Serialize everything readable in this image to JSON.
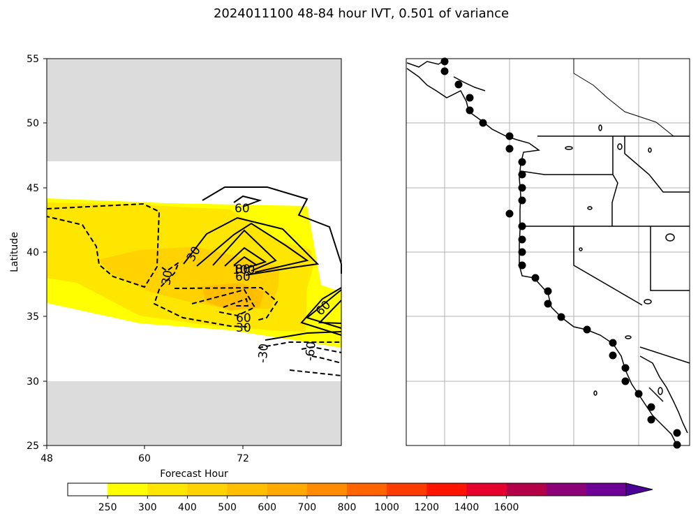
{
  "title": "2024011100 48-84 hour IVT, 0.501 of variance",
  "chart_data": [
    {
      "type": "contour",
      "xlabel": "Forecast Hour",
      "ylabel": "Latitude",
      "xlim": [
        48,
        84
      ],
      "ylim": [
        25,
        55
      ],
      "xticks": [
        "48",
        "60",
        "72"
      ],
      "yticks": [
        "25",
        "30",
        "35",
        "40",
        "45",
        "50",
        "55"
      ],
      "masked_latitude_ranges": [
        [
          47,
          55
        ],
        [
          25,
          30
        ]
      ],
      "contour_labels": [
        "60",
        "30",
        "30",
        "100",
        "80",
        "60",
        "30",
        "60",
        "-30",
        "-60"
      ],
      "contour_levels_solid": [
        30,
        60,
        80,
        100
      ],
      "contour_levels_dashed": [
        -30,
        -60
      ]
    },
    {
      "type": "map",
      "region": "US West Coast",
      "point_count": 28,
      "grid": true
    }
  ],
  "colorbar": {
    "ticks": [
      "250",
      "300",
      "400",
      "500",
      "600",
      "700",
      "800",
      "1000",
      "1200",
      "1400",
      "1600"
    ],
    "colors": [
      "#ffffff",
      "#ffff00",
      "#ffe600",
      "#ffd200",
      "#ffbe00",
      "#ffaa00",
      "#ff8c00",
      "#ff6400",
      "#ff3c00",
      "#ff1400",
      "#e6002d",
      "#b40046",
      "#8c0078",
      "#6e0096",
      "#4b0096"
    ]
  }
}
